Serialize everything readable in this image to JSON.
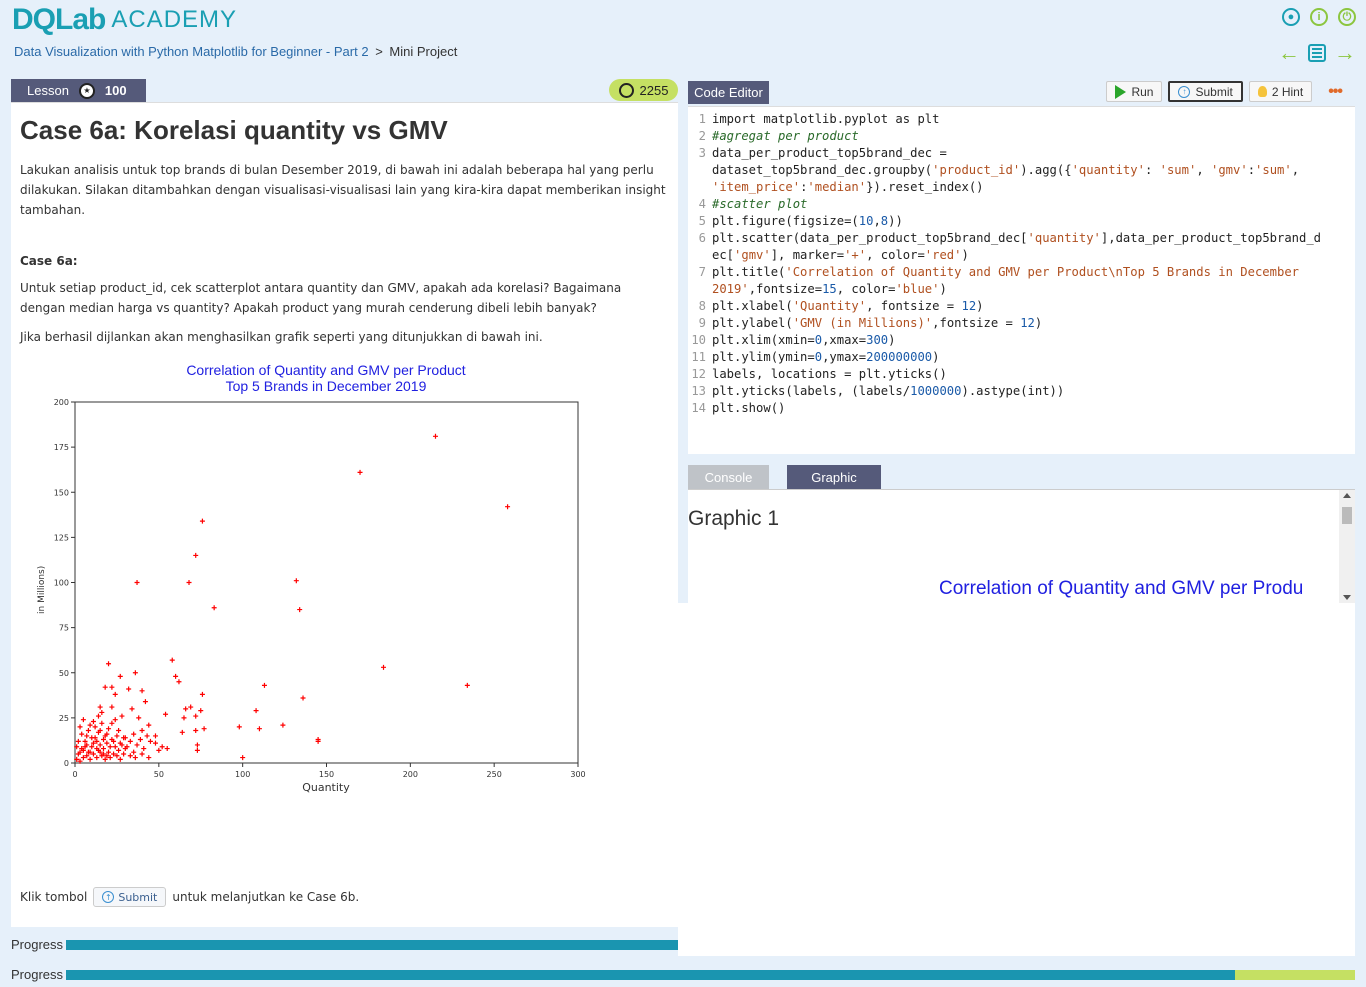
{
  "header": {
    "logo_brand": "DQLab",
    "logo_academy": "ACADEMY",
    "breadcrumb_course": "Data Visualization with Python Matplotlib for Beginner - Part 2",
    "breadcrumb_separator": ">",
    "breadcrumb_current": "Mini Project",
    "icons": [
      "user-icon",
      "info-icon",
      "power-icon",
      "prev-arrow-icon",
      "list-icon",
      "next-arrow-icon"
    ]
  },
  "lesson": {
    "tab_label": "Lesson",
    "tab_score": "100",
    "points": "2255",
    "title": "Case 6a: Korelasi quantity vs GMV",
    "intro": "Lakukan analisis untuk top brands di bulan Desember 2019, di bawah ini adalah beberapa hal yang perlu dilakukan. Silakan ditambahkan dengan visualisasi-visualisasi lain yang kira-kira dapat memberikan insight tambahan.",
    "case_label": "Case 6a:",
    "instruction": "Untuk setiap product_id, cek scatterplot antara  quantity dan GMV, apakah ada korelasi? Bagaimana dengan median harga vs quantity? Apakah product yang murah cenderung dibeli lebih banyak?",
    "result_note": "Jika berhasil dijlankan akan menghasilkan grafik seperti yang ditunjukkan di bawah ini.",
    "footer_prefix": "Klik tombol",
    "footer_button": "Submit",
    "footer_suffix": "untuk melanjutkan ke Case 6b."
  },
  "chart_data": {
    "type": "scatter",
    "title_line1": "Correlation of Quantity and GMV per Product",
    "title_line2": "Top 5 Brands in December 2019",
    "xlabel": "Quantity",
    "ylabel": "in Millions)",
    "xlim": [
      0,
      300
    ],
    "ylim": [
      0,
      200
    ],
    "xticks": [
      "0",
      "50",
      "100",
      "150",
      "200",
      "250",
      "300"
    ],
    "yticks": [
      "0",
      "25",
      "50",
      "75",
      "100",
      "125",
      "150",
      "175",
      "200"
    ],
    "marker": "+",
    "color": "#ff0000",
    "title_color": "#2020e0",
    "points": [
      [
        215,
        181
      ],
      [
        170,
        161
      ],
      [
        258,
        142
      ],
      [
        76,
        134
      ],
      [
        72,
        115
      ],
      [
        37,
        100
      ],
      [
        68,
        100
      ],
      [
        132,
        101
      ],
      [
        134,
        85
      ],
      [
        83,
        86
      ],
      [
        58,
        57
      ],
      [
        20,
        55
      ],
      [
        36,
        50
      ],
      [
        184,
        53
      ],
      [
        27,
        48
      ],
      [
        60,
        48
      ],
      [
        62,
        45
      ],
      [
        18,
        42
      ],
      [
        113,
        43
      ],
      [
        234,
        43
      ],
      [
        22,
        42
      ],
      [
        32,
        41
      ],
      [
        40,
        40
      ],
      [
        24,
        38
      ],
      [
        76,
        38
      ],
      [
        136,
        36
      ],
      [
        66,
        30
      ],
      [
        69,
        31
      ],
      [
        42,
        34
      ],
      [
        108,
        29
      ],
      [
        15,
        31
      ],
      [
        22,
        31
      ],
      [
        34,
        30
      ],
      [
        75,
        29
      ],
      [
        28,
        26
      ],
      [
        54,
        27
      ],
      [
        65,
        25
      ],
      [
        14,
        26
      ],
      [
        72,
        26
      ],
      [
        38,
        25
      ],
      [
        98,
        20
      ],
      [
        124,
        21
      ],
      [
        110,
        19
      ],
      [
        77,
        19
      ],
      [
        72,
        18
      ],
      [
        64,
        17
      ],
      [
        44,
        21
      ],
      [
        48,
        15
      ],
      [
        145,
        13
      ],
      [
        145,
        12
      ],
      [
        30,
        14
      ],
      [
        35,
        16
      ],
      [
        40,
        18
      ],
      [
        48,
        11
      ],
      [
        50,
        7
      ],
      [
        73,
        10
      ],
      [
        73,
        7
      ],
      [
        100,
        3
      ],
      [
        52,
        9
      ],
      [
        55,
        8
      ],
      [
        1,
        2
      ],
      [
        2,
        5
      ],
      [
        3,
        1
      ],
      [
        4,
        8
      ],
      [
        5,
        3
      ],
      [
        6,
        12
      ],
      [
        7,
        4
      ],
      [
        8,
        6
      ],
      [
        9,
        2
      ],
      [
        10,
        9
      ],
      [
        11,
        5
      ],
      [
        12,
        14
      ],
      [
        13,
        3
      ],
      [
        14,
        7
      ],
      [
        15,
        10
      ],
      [
        16,
        4
      ],
      [
        17,
        8
      ],
      [
        18,
        2
      ],
      [
        19,
        11
      ],
      [
        20,
        6
      ],
      [
        21,
        3
      ],
      [
        22,
        13
      ],
      [
        23,
        5
      ],
      [
        24,
        9
      ],
      [
        25,
        4
      ],
      [
        26,
        7
      ],
      [
        27,
        2
      ],
      [
        28,
        10
      ],
      [
        29,
        5
      ],
      [
        30,
        8
      ],
      [
        2,
        12
      ],
      [
        4,
        16
      ],
      [
        6,
        9
      ],
      [
        8,
        18
      ],
      [
        10,
        14
      ],
      [
        12,
        20
      ],
      [
        14,
        17
      ],
      [
        16,
        22
      ],
      [
        18,
        15
      ],
      [
        20,
        19
      ],
      [
        3,
        20
      ],
      [
        5,
        24
      ],
      [
        7,
        15
      ],
      [
        9,
        21
      ],
      [
        11,
        23
      ],
      [
        13,
        12
      ],
      [
        15,
        18
      ],
      [
        17,
        13
      ],
      [
        19,
        16
      ],
      [
        21,
        9
      ],
      [
        1,
        9
      ],
      [
        3,
        6
      ],
      [
        5,
        7
      ],
      [
        7,
        10
      ],
      [
        9,
        6
      ],
      [
        11,
        11
      ],
      [
        13,
        8
      ],
      [
        15,
        6
      ],
      [
        17,
        5
      ],
      [
        19,
        4
      ],
      [
        23,
        12
      ],
      [
        25,
        15
      ],
      [
        27,
        11
      ],
      [
        29,
        14
      ],
      [
        31,
        9
      ],
      [
        33,
        12
      ],
      [
        35,
        6
      ],
      [
        37,
        10
      ],
      [
        39,
        13
      ],
      [
        41,
        8
      ],
      [
        43,
        15
      ],
      [
        45,
        12
      ],
      [
        33,
        4
      ],
      [
        36,
        3
      ],
      [
        40,
        5
      ],
      [
        44,
        3
      ],
      [
        26,
        18
      ],
      [
        24,
        24
      ],
      [
        22,
        22
      ],
      [
        16,
        28
      ]
    ]
  },
  "editor": {
    "tab_label": "Code Editor",
    "run_label": "Run",
    "submit_label": "Submit",
    "hint_label": "2 Hint",
    "more_label": "•••",
    "lines": [
      {
        "n": "1",
        "html": "import matplotlib.pyplot as plt"
      },
      {
        "n": "2",
        "html": "<span class=\"cmt\">#agregat per product</span>"
      },
      {
        "n": "3",
        "html": "data_per_product_top5brand_dec =\ndataset_top5brand_dec.groupby(<span class=\"str\">'product_id'</span>).agg({<span class=\"str\">'quantity'</span>: <span class=\"str\">'sum'</span>, <span class=\"str\">'gmv'</span>:<span class=\"str\">'sum'</span>,\n<span class=\"str\">'item_price'</span>:<span class=\"str\">'median'</span>}).reset_index()"
      },
      {
        "n": "4",
        "html": "<span class=\"cmt\">#scatter plot</span>"
      },
      {
        "n": "5",
        "html": "plt.figure(figsize=(<span class=\"num\">10</span>,<span class=\"num\">8</span>))"
      },
      {
        "n": "6",
        "html": "plt.scatter(data_per_product_top5brand_dec[<span class=\"str\">'quantity'</span>],data_per_product_top5brand_d\nec[<span class=\"str\">'gmv'</span>], marker=<span class=\"str\">'+'</span>, color=<span class=\"str\">'red'</span>)"
      },
      {
        "n": "7",
        "html": "plt.title(<span class=\"str\">'Correlation of Quantity and GMV per Product\\nTop 5 Brands in December\n2019'</span>,fontsize=<span class=\"num\">15</span>, color=<span class=\"str\">'blue'</span>)"
      },
      {
        "n": "8",
        "html": "plt.xlabel(<span class=\"str\">'Quantity'</span>, fontsize = <span class=\"num\">12</span>)"
      },
      {
        "n": "9",
        "html": "plt.ylabel(<span class=\"str\">'GMV (in Millions)'</span>,fontsize = <span class=\"num\">12</span>)"
      },
      {
        "n": "10",
        "html": "plt.xlim(xmin=<span class=\"num\">0</span>,xmax=<span class=\"num\">300</span>)"
      },
      {
        "n": "11",
        "html": "plt.ylim(ymin=<span class=\"num\">0</span>,ymax=<span class=\"num\">200000000</span>)"
      },
      {
        "n": "12",
        "html": "labels, locations = plt.yticks()"
      },
      {
        "n": "13",
        "html": "plt.yticks(labels, (labels/<span class=\"num\">1000000</span>).astype(int))"
      },
      {
        "n": "14",
        "html": "plt.show()"
      }
    ]
  },
  "output": {
    "console_tab": "Console",
    "graphic_tab": "Graphic",
    "graphic_title": "Graphic 1",
    "chart_title_preview": "Correlation of Quantity and GMV per Produ"
  },
  "progress": {
    "label": "Progress",
    "lesson_fraction": 1.0,
    "course_fraction": 0.907
  }
}
